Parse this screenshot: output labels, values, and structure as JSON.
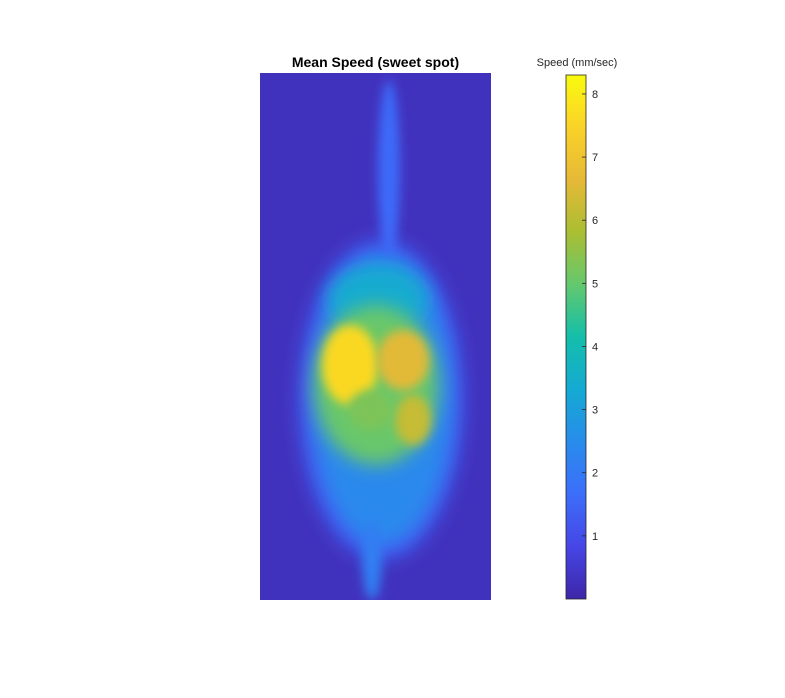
{
  "chart_data": {
    "type": "heatmap",
    "title": "Mean Speed (sweet spot)",
    "xlabel": "",
    "ylabel": "",
    "colorbar": {
      "label": "Speed (mm/sec)",
      "clim": [
        0,
        8.3
      ],
      "ticks": [
        1,
        2,
        3,
        4,
        5,
        6,
        7,
        8
      ],
      "tick_labels": [
        "1",
        "2",
        "3",
        "4",
        "5",
        "6",
        "7",
        "8"
      ],
      "colormap": "parula"
    },
    "background_value": 0.3,
    "features": [
      {
        "kind": "trunk",
        "value": 2.4
      },
      {
        "kind": "lower-stem",
        "value": 2.1
      },
      {
        "kind": "upper-stem",
        "value": 1.6
      },
      {
        "kind": "core-left",
        "value": 7.6
      },
      {
        "kind": "core-right",
        "value": 6.6
      },
      {
        "kind": "core-low-right",
        "value": 6.2
      }
    ],
    "grid": false,
    "legend": "colorbar-right"
  },
  "colors": {
    "parula_low": "#3e26a8",
    "parula_high": "#f9fb0e"
  }
}
